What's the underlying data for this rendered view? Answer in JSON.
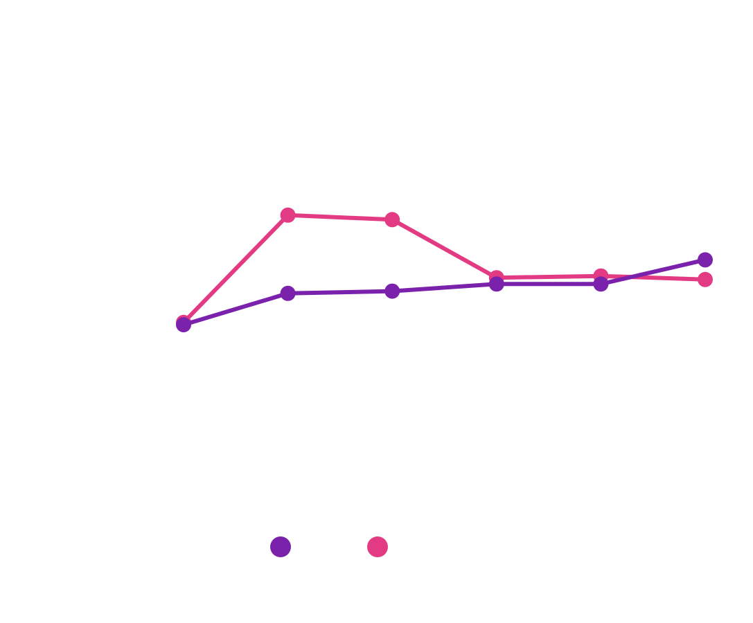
{
  "chart_data": {
    "type": "line",
    "x": [
      1,
      2,
      3,
      4,
      5,
      6
    ],
    "ylim": [
      0,
      100
    ],
    "grid": false,
    "legend_position": "bottom-left",
    "series": [
      {
        "color": "#7a22ac",
        "values": [
          45.5,
          52.5,
          53.0,
          54.6,
          54.6,
          60.0
        ]
      },
      {
        "color": "#e33b83",
        "values": [
          46.0,
          70.0,
          69.0,
          56.0,
          56.4,
          55.6
        ]
      }
    ]
  }
}
